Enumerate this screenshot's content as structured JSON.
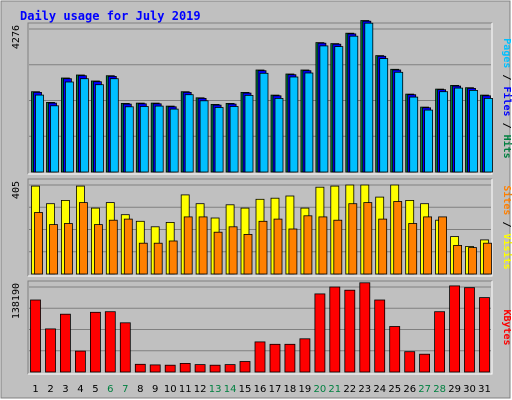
{
  "chart_data": {
    "type": "bar",
    "title": "Daily usage for July 2019",
    "categories": [
      "1",
      "2",
      "3",
      "4",
      "5",
      "6",
      "7",
      "8",
      "9",
      "10",
      "11",
      "12",
      "13",
      "14",
      "15",
      "16",
      "17",
      "18",
      "19",
      "20",
      "21",
      "22",
      "23",
      "24",
      "25",
      "26",
      "27",
      "28",
      "29",
      "30",
      "31"
    ],
    "weekend_days": [
      6,
      7,
      13,
      14,
      20,
      21,
      27,
      28
    ],
    "colors": {
      "background": "#ffffff",
      "frame": "#c0c0c0",
      "plot": "#c0c0c0",
      "title": "#0000ff",
      "weekday_label": "#000000",
      "weekend_label": "#008040",
      "hits": "#008040",
      "files": "#0000ff",
      "pages": "#00c0ff",
      "visits": "#ffff00",
      "sites": "#ff8000",
      "kbytes": "#ff0000"
    },
    "panels": [
      {
        "id": "top",
        "ymax": 4276,
        "ytick_label": "4276",
        "legend_parts": [
          {
            "text": "Pages",
            "color": "#00c0ff"
          },
          {
            "text": " / ",
            "color": "#000000"
          },
          {
            "text": "Files",
            "color": "#0000ff"
          },
          {
            "text": " / ",
            "color": "#000000"
          },
          {
            "text": "Hits",
            "color": "#008040"
          }
        ],
        "series": [
          {
            "name": "Hits",
            "color": "#008040",
            "values": [
              2400,
              2080,
              2810,
              2900,
              2720,
              2880,
              2050,
              2060,
              2060,
              1970,
              2400,
              2220,
              2020,
              2050,
              2380,
              3050,
              2300,
              2930,
              3050,
              3870,
              3840,
              4150,
              4530,
              3480,
              3070,
              2330,
              1940,
              2480,
              2590,
              2520,
              2300
            ]
          },
          {
            "name": "Files",
            "color": "#0000ff",
            "values": [
              2380,
              2060,
              2790,
              2880,
              2700,
              2860,
              2030,
              2040,
              2040,
              1950,
              2380,
              2200,
              2000,
              2030,
              2360,
              3030,
              2280,
              2910,
              3030,
              3850,
              3820,
              4130,
              4510,
              3460,
              3050,
              2310,
              1920,
              2460,
              2570,
              2500,
              2280
            ]
          },
          {
            "name": "Pages",
            "color": "#00c0ff",
            "values": [
              2300,
              1980,
              2690,
              2790,
              2610,
              2790,
              1950,
              1960,
              1970,
              1880,
              2310,
              2130,
              1930,
              1960,
              2290,
              2950,
              2200,
              2840,
              2960,
              3770,
              3750,
              4060,
              4450,
              3390,
              2980,
              2240,
              1850,
              2400,
              2510,
              2440,
              2200
            ]
          }
        ]
      },
      {
        "id": "middle",
        "ymax": 405,
        "ytick_label": "405",
        "legend_parts": [
          {
            "text": "Sites",
            "color": "#ff8000"
          },
          {
            "text": " / ",
            "color": "#000000"
          },
          {
            "text": "Visits",
            "color": "#ffff00"
          }
        ],
        "series": [
          {
            "name": "Visits",
            "color": "#ffff00",
            "values": [
              400,
              320,
              335,
              400,
              300,
              325,
              270,
              240,
              215,
              235,
              360,
              320,
              255,
              315,
              300,
              340,
              345,
              355,
              300,
              395,
              400,
              405,
              405,
              350,
              405,
              335,
              320,
              245,
              170,
              125,
              155
            ]
          },
          {
            "name": "Sites",
            "color": "#ff8000",
            "values": [
              280,
              225,
              230,
              325,
              225,
              245,
              250,
              140,
              140,
              150,
              260,
              260,
              190,
              215,
              180,
              240,
              250,
              205,
              265,
              260,
              245,
              320,
              325,
              250,
              330,
              230,
              260,
              260,
              130,
              120,
              140
            ]
          }
        ]
      },
      {
        "id": "bottom",
        "ymax": 138190,
        "ytick_label": "138190",
        "legend_parts": [
          {
            "text": "KBytes",
            "color": "#ff0000"
          }
        ],
        "series": [
          {
            "name": "KBytes",
            "color": "#ff0000",
            "values": [
              117000,
              70000,
              94000,
              34000,
              97000,
              98000,
              80000,
              12500,
              11500,
              11000,
              14000,
              12000,
              11000,
              12000,
              17000,
              49000,
              45000,
              45000,
              54000,
              127000,
              138190,
              133000,
              145000,
              117000,
              74000,
              33000,
              29000,
              98000,
              140000,
              137000,
              121000
            ]
          }
        ]
      }
    ]
  }
}
